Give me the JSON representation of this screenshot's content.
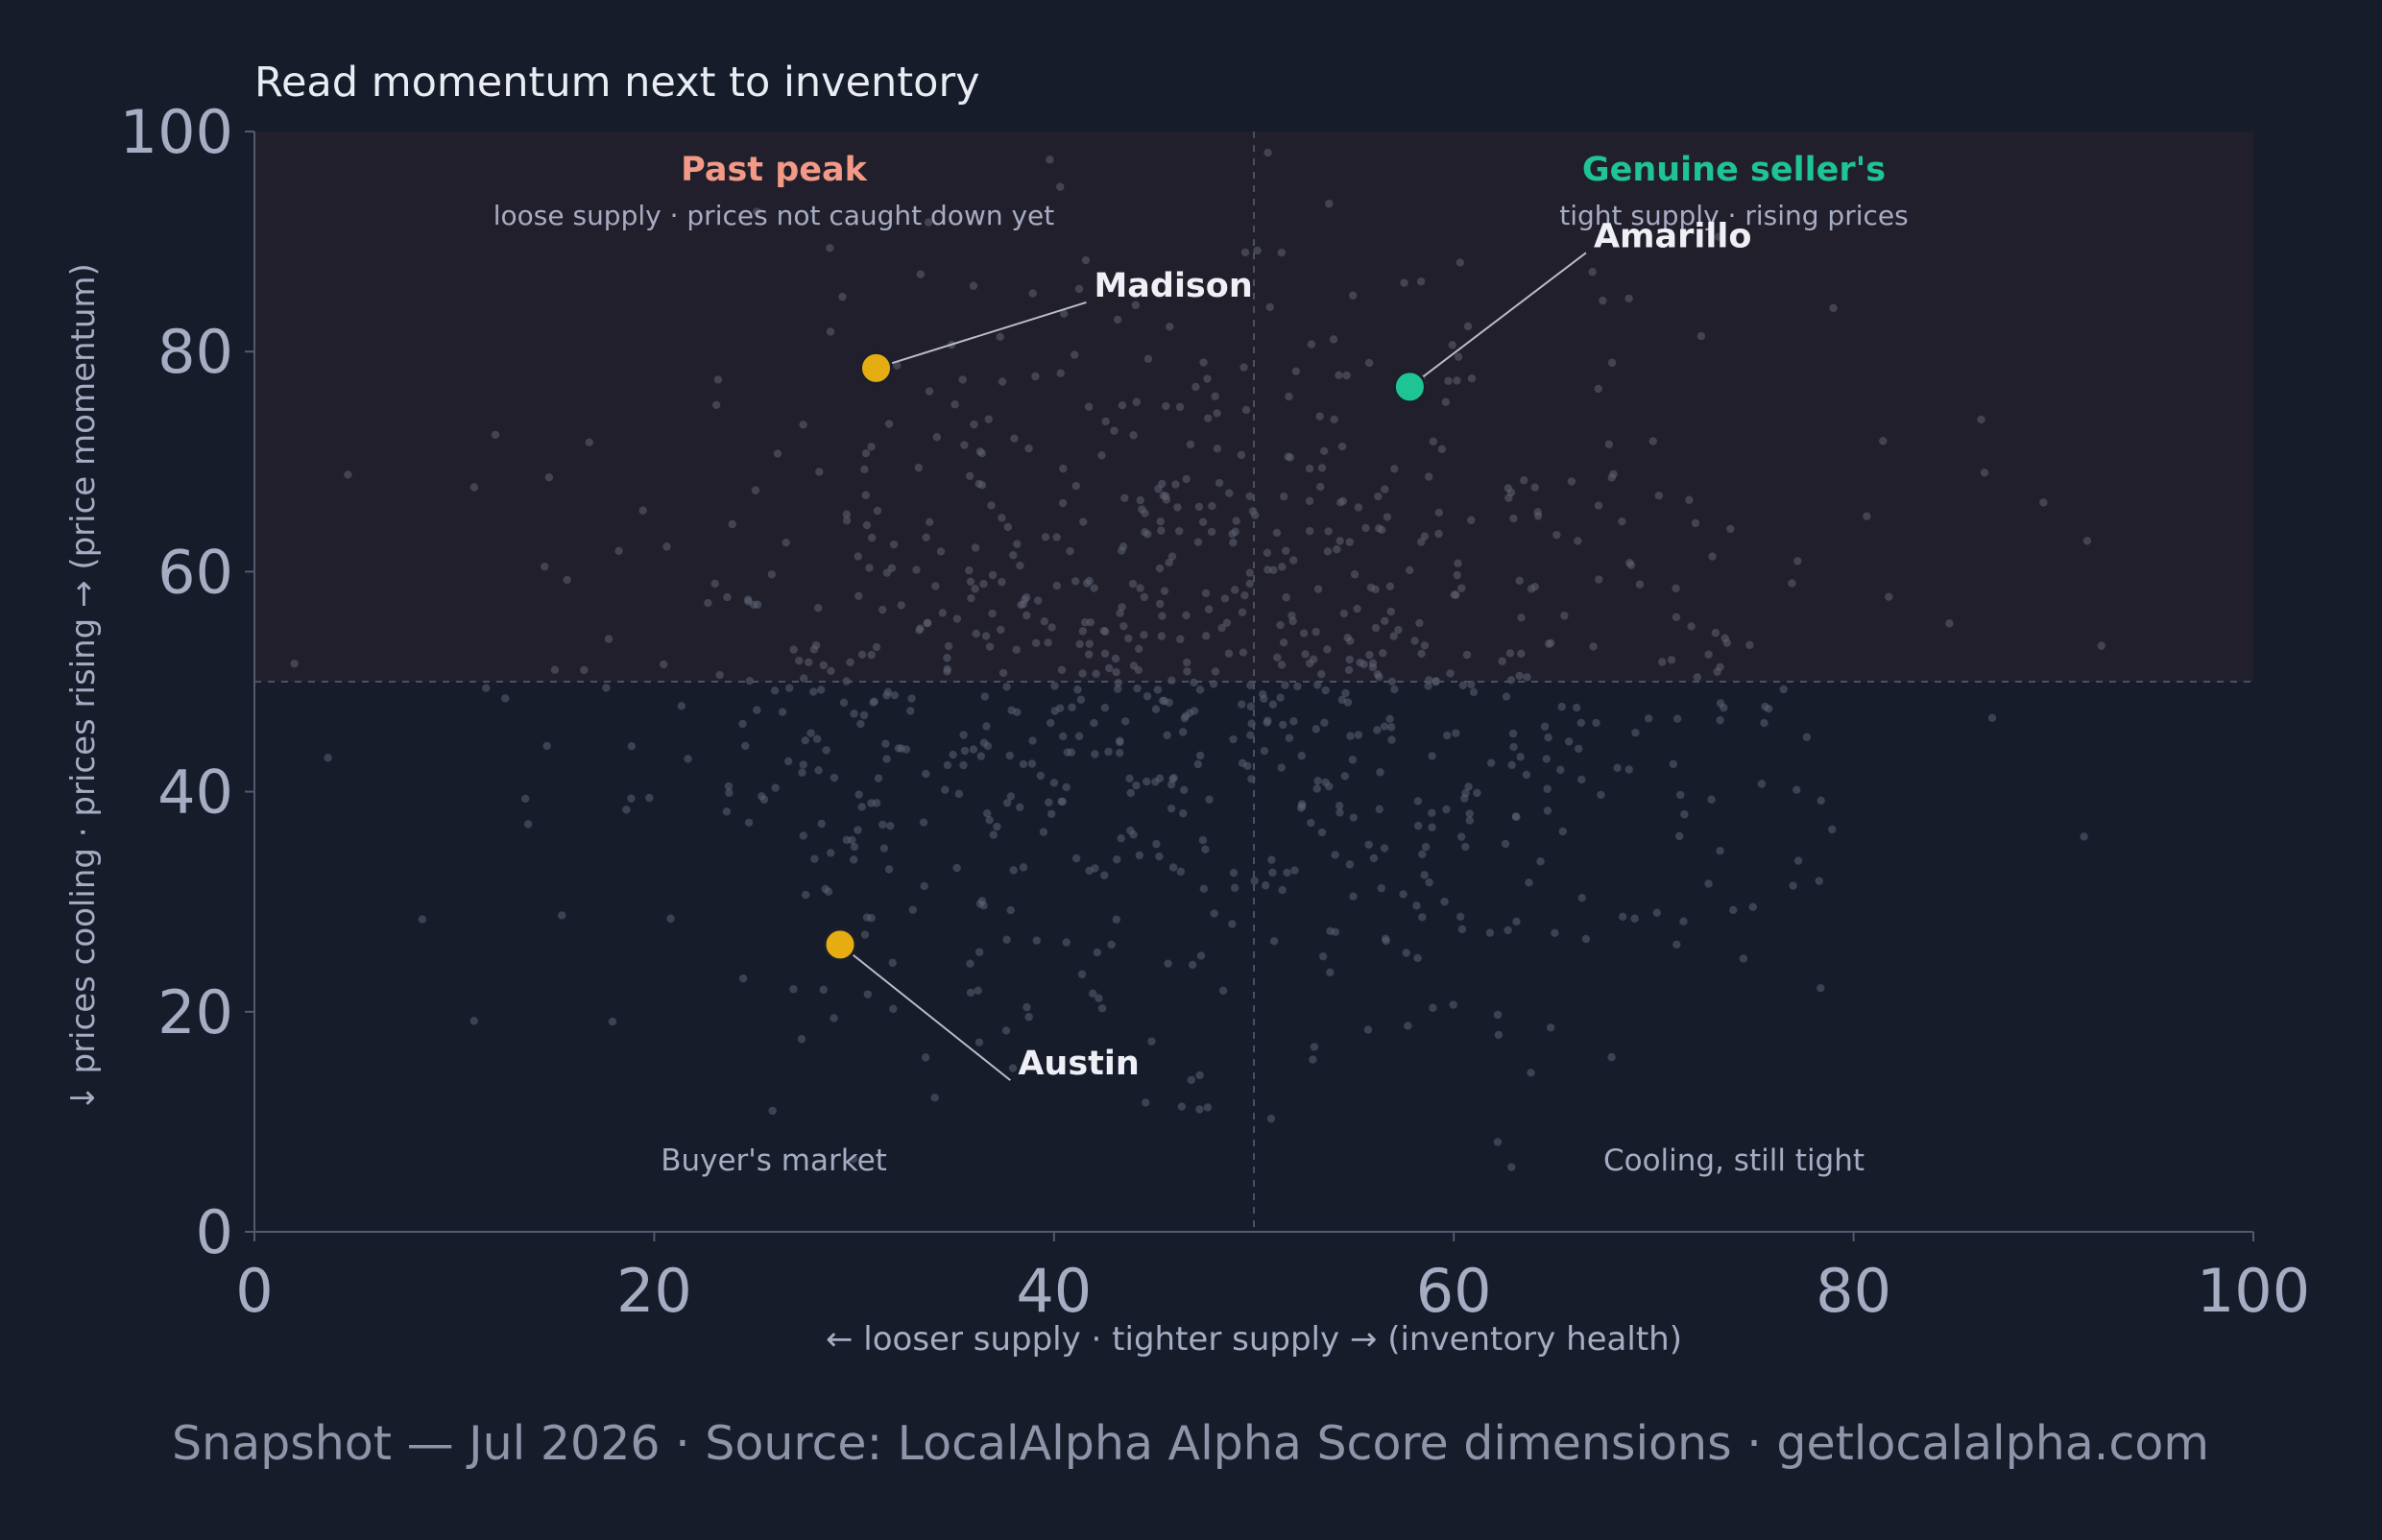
{
  "chart_data": {
    "type": "scatter",
    "title": "Read momentum next to inventory",
    "xlabel": "←  looser supply       ·       tighter supply  →   (inventory health)",
    "ylabel": "↓  prices cooling       ·       prices rising  →   (price momentum)",
    "xlim": [
      0,
      100
    ],
    "ylim": [
      0,
      100
    ],
    "x_ticks": [
      "0",
      "20",
      "40",
      "60",
      "80",
      "100"
    ],
    "y_ticks": [
      "0",
      "20",
      "40",
      "60",
      "80",
      "100"
    ],
    "grid": false,
    "divider_x": 50,
    "divider_y": 50,
    "quadrants": {
      "top_left": {
        "title": "Past peak",
        "subtitle": "loose supply · prices not caught down yet",
        "color": "#f29a86"
      },
      "top_right": {
        "title": "Genuine seller's",
        "subtitle": "tight supply · rising prices",
        "color": "#1ec494"
      },
      "bottom_left": {
        "title": "Buyer's market"
      },
      "bottom_right": {
        "title": "Cooling, still tight"
      }
    },
    "highlights": [
      {
        "name": "Madison",
        "x": 31.1,
        "y": 78.5,
        "color": "#e6ad12",
        "label_x": 42,
        "label_y": 85
      },
      {
        "name": "Amarillo",
        "x": 57.8,
        "y": 76.8,
        "color": "#1ec494",
        "label_x": 67,
        "label_y": 89.5
      },
      {
        "name": "Austin",
        "x": 29.3,
        "y": 26.1,
        "color": "#e6ad12",
        "label_x": 38.2,
        "label_y": 14.3
      }
    ],
    "background": {
      "description_note": null,
      "center": [
        47,
        50
      ],
      "spread": [
        15,
        17
      ],
      "count": 900,
      "color": "#5d6272"
    }
  },
  "footer": {
    "text": "Snapshot — Jul 2026   ·   Source: LocalAlpha Alpha Score dimensions   ·   getlocalalpha.com"
  },
  "colors": {
    "background": "#171c2b",
    "top_band": "#221f2d",
    "axis": "#535a6e",
    "divider": "#4a5064"
  }
}
